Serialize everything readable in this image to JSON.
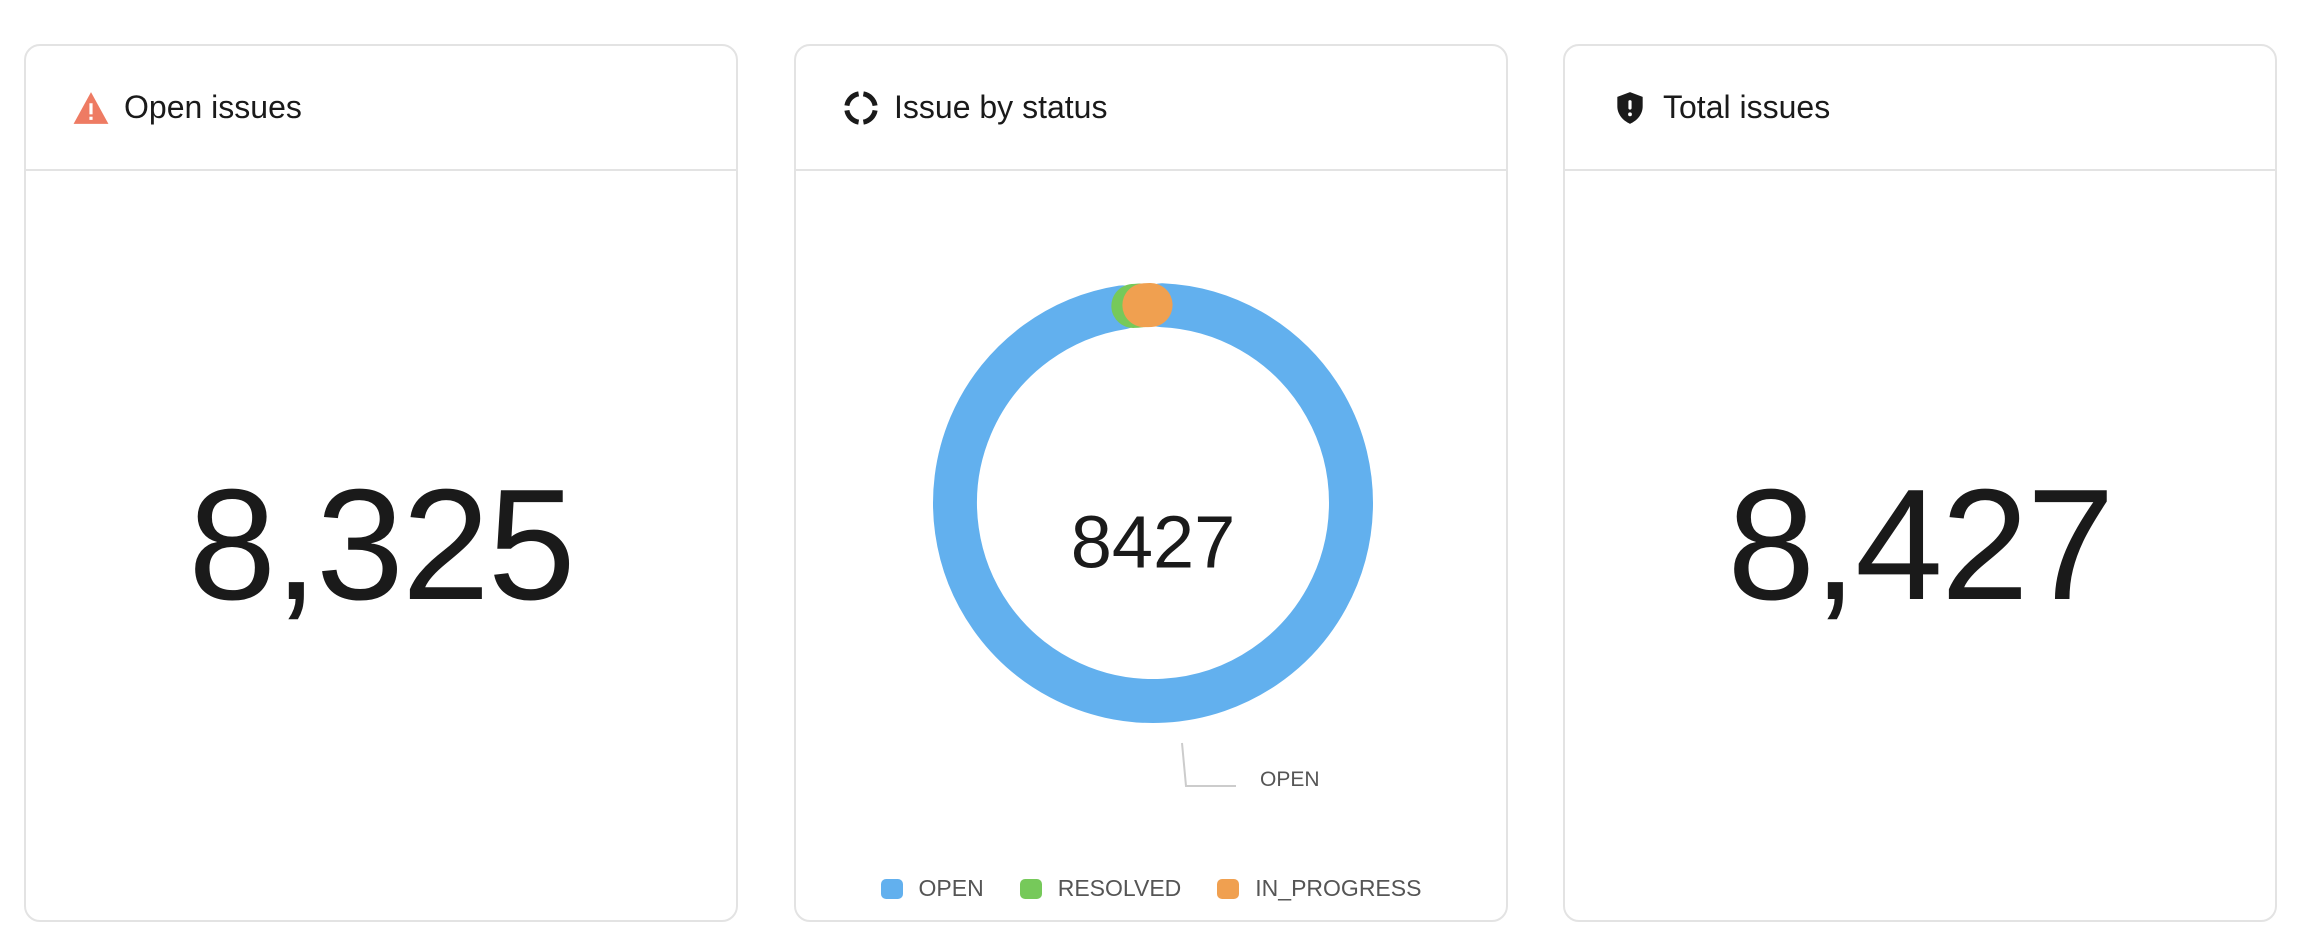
{
  "cards": [
    {
      "title": "Open issues",
      "icon": "warning-triangle-icon",
      "icon_color": "#EE7B63",
      "value": "8,325"
    },
    {
      "title": "Issue by status",
      "icon": "donut-chart-icon",
      "icon_color": "#1a1a1a"
    },
    {
      "title": "Total issues",
      "icon": "shield-alert-icon",
      "icon_color": "#1a1a1a",
      "value": "8,427"
    }
  ],
  "chart_data": {
    "type": "pie",
    "variant": "donut",
    "center_label": "8427",
    "series": [
      {
        "name": "OPEN",
        "value": 8325,
        "color": "#62B0EE"
      },
      {
        "name": "RESOLVED",
        "value": 54,
        "color": "#76C95A"
      },
      {
        "name": "IN_PROGRESS",
        "value": 48,
        "color": "#F0A050"
      }
    ],
    "slice_label": "OPEN",
    "legend": [
      "OPEN",
      "RESOLVED",
      "IN_PROGRESS"
    ],
    "legend_position": "bottom"
  }
}
